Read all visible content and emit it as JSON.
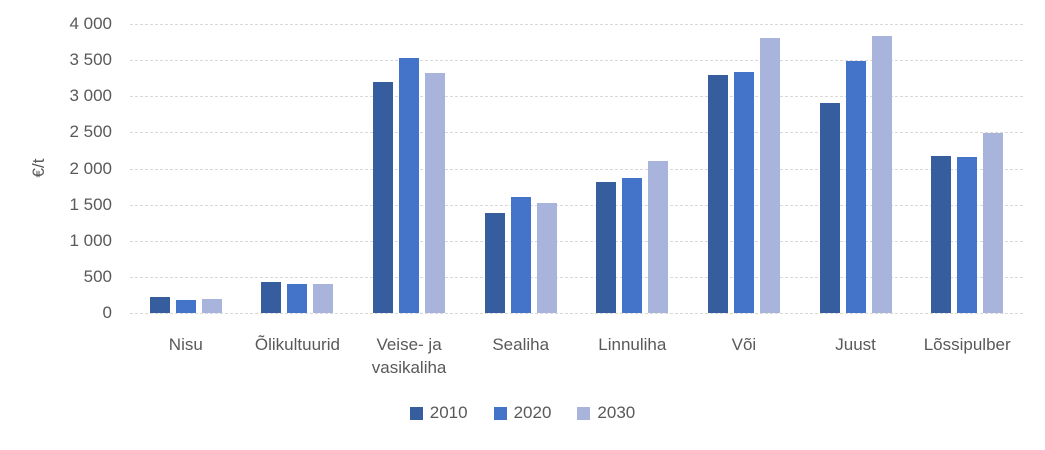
{
  "chart_data": {
    "type": "bar",
    "title": "",
    "xlabel": "",
    "ylabel": "€/t",
    "ylim": [
      0,
      4000
    ],
    "ytick_step": 500,
    "ytick_labels": [
      "0",
      "500",
      "1 000",
      "1 500",
      "2 000",
      "2 500",
      "3 000",
      "3 500",
      "4 000"
    ],
    "grid": true,
    "gridline_style": "dashed",
    "legend_position": "bottom-center",
    "categories": [
      "Nisu",
      "Õlikultuurid",
      "Veise- ja vasikaliha",
      "Sealiha",
      "Linnuliha",
      "Või",
      "Juust",
      "Lõssipulber"
    ],
    "series": [
      {
        "name": "2010",
        "color": "#365d9e",
        "values": [
          220,
          430,
          3200,
          1390,
          1820,
          3300,
          2900,
          2170
        ]
      },
      {
        "name": "2020",
        "color": "#4374c9",
        "values": [
          180,
          400,
          3530,
          1610,
          1870,
          3330,
          3490,
          2160
        ]
      },
      {
        "name": "2030",
        "color": "#a8b4db",
        "values": [
          190,
          405,
          3320,
          1520,
          2110,
          3800,
          3840,
          2490
        ]
      }
    ]
  },
  "colors": {
    "gridline": "#d9d9d9",
    "text": "#595959",
    "background": "#ffffff"
  }
}
